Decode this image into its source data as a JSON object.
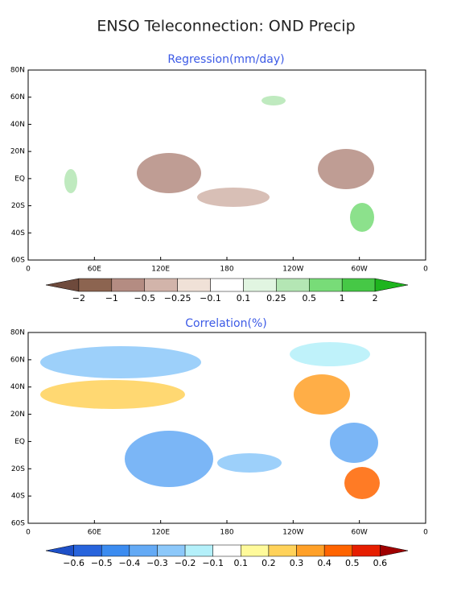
{
  "title": "ENSO Teleconnection: OND Precip",
  "panels": [
    {
      "subtitle": "Regression(mm/day)",
      "lat_labels": [
        "80N",
        "60N",
        "40N",
        "20N",
        "EQ",
        "20S",
        "40S",
        "60S"
      ],
      "lon_labels": [
        "0",
        "60E",
        "120E",
        "180",
        "120W",
        "60W",
        "0"
      ],
      "colorbar": {
        "labels": [
          "−2",
          "−1",
          "−0.5",
          "−0.25",
          "−0.1",
          "0.1",
          "0.25",
          "0.5",
          "1",
          "2"
        ],
        "colors": [
          "#6e4a3c",
          "#8c6450",
          "#b48c82",
          "#d2b4aa",
          "#f0e1d7",
          "#ffffff",
          "#e1f5e1",
          "#b4e6b4",
          "#78dc78",
          "#46c846",
          "#1eb41e"
        ]
      }
    },
    {
      "subtitle": "Correlation(%)",
      "lat_labels": [
        "80N",
        "60N",
        "40N",
        "20N",
        "EQ",
        "20S",
        "40S",
        "60S"
      ],
      "lon_labels": [
        "0",
        "60E",
        "120E",
        "180",
        "120W",
        "60W",
        "0"
      ],
      "colorbar": {
        "labels": [
          "−0.6",
          "−0.5",
          "−0.4",
          "−0.3",
          "−0.2",
          "−0.1",
          "0.1",
          "0.2",
          "0.3",
          "0.4",
          "0.5",
          "0.6"
        ],
        "colors": [
          "#1e50c8",
          "#2864dc",
          "#3c8cf0",
          "#64aaf5",
          "#8cc8fa",
          "#b4f0fa",
          "#ffffff",
          "#fffa9b",
          "#ffd25a",
          "#ffa028",
          "#ff6400",
          "#e61e00",
          "#a00000"
        ]
      }
    }
  ]
}
